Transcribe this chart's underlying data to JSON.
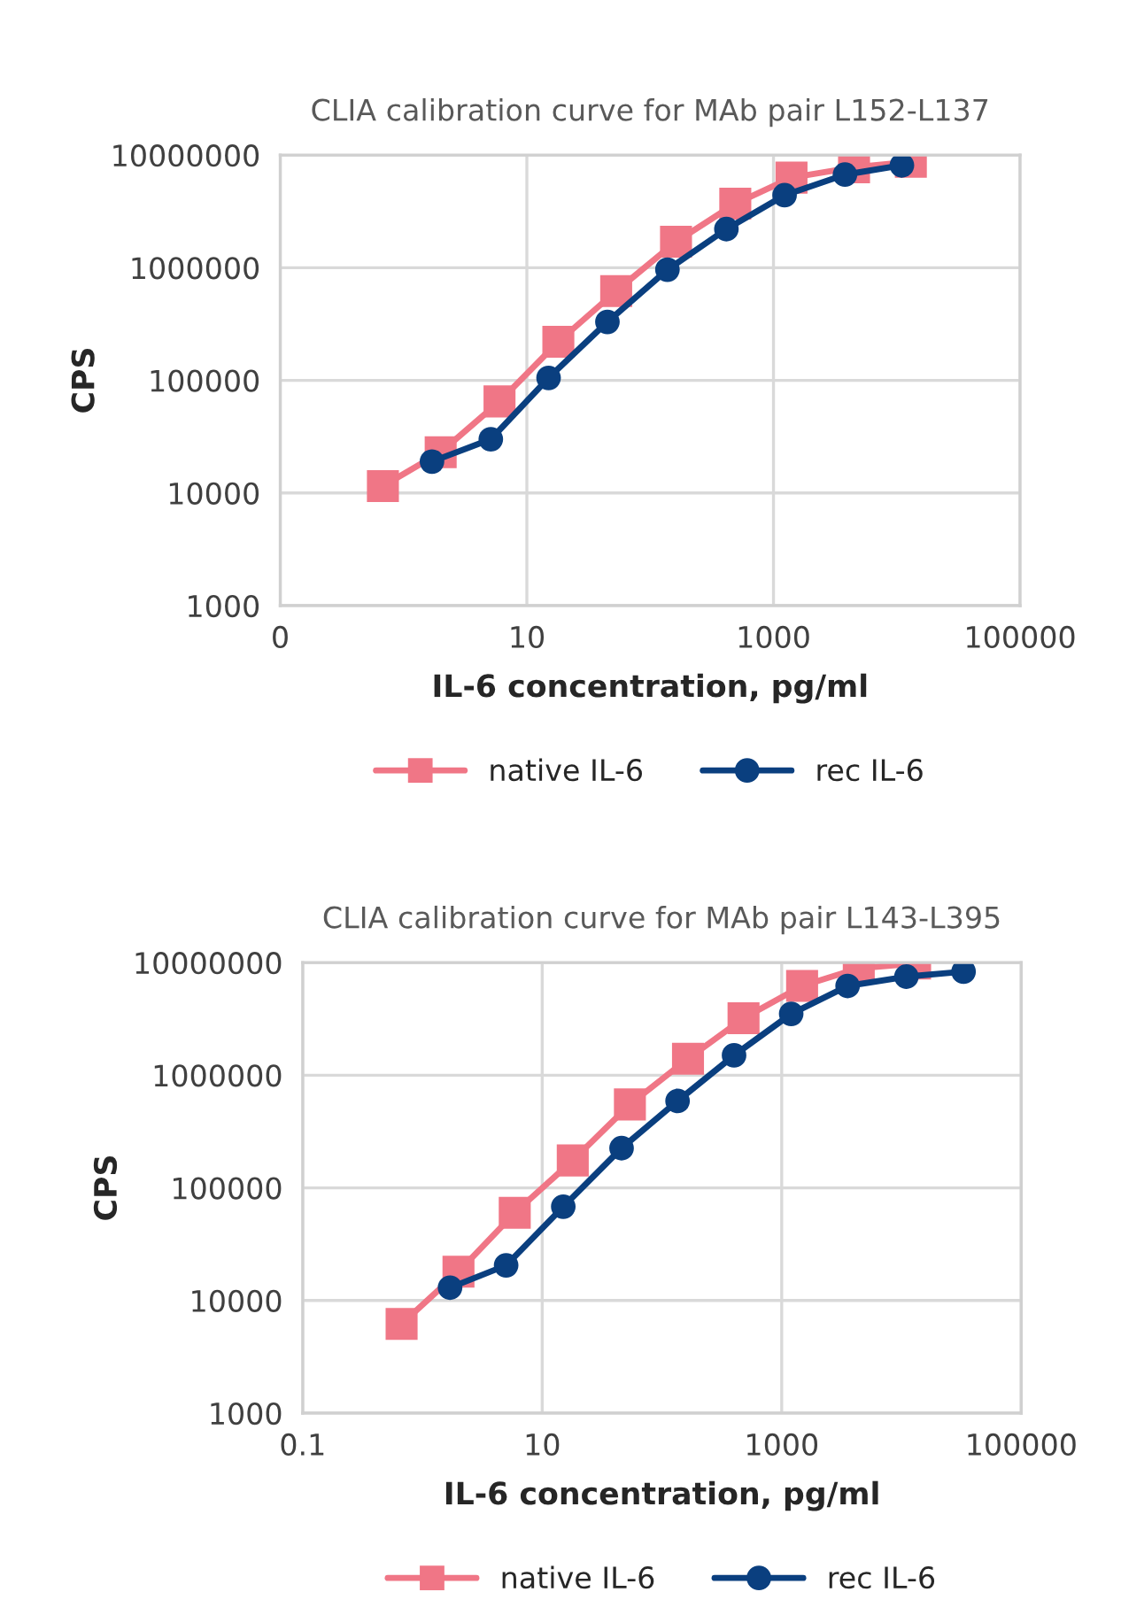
{
  "chart_data": [
    {
      "type": "line",
      "title": "CLIA calibration curve for MAb pair L152-L137",
      "xlabel": "IL-6 concentration, pg/ml",
      "ylabel": "CPS",
      "log": "xy",
      "xlim": [
        0.1,
        100000
      ],
      "xticks": [
        {
          "value": 0.1,
          "label": "0"
        },
        10,
        1000,
        100000
      ],
      "ylim": [
        1000,
        10000000
      ],
      "yticks": [
        1000,
        10000,
        100000,
        1000000,
        10000000
      ],
      "grid": true,
      "legend": "bottom",
      "series": [
        {
          "name": "native IL-6",
          "color": "#f07686",
          "marker": "square",
          "x": [
            0.68,
            2.0,
            6.0,
            18,
            53,
            162,
            490,
            1400,
            4500,
            13000
          ],
          "values": [
            11500,
            23000,
            65000,
            220000,
            620000,
            1700000,
            3700000,
            6300000,
            7800000,
            8700000
          ]
        },
        {
          "name": "rec IL-6",
          "color": "#0a3f7f",
          "marker": "circle",
          "x": [
            1.7,
            5.1,
            15,
            45,
            138,
            415,
            1230,
            3800,
            11000
          ],
          "values": [
            19000,
            30000,
            105000,
            330000,
            960000,
            2200000,
            4400000,
            6700000,
            8100000
          ]
        }
      ]
    },
    {
      "type": "line",
      "title": "CLIA calibration curve for MAb pair L143-L395",
      "xlabel": "IL-6 concentration, pg/ml",
      "ylabel": "CPS",
      "log": "xy",
      "xlim": [
        0.1,
        100000
      ],
      "xticks": [
        0.1,
        10,
        1000,
        100000
      ],
      "ylim": [
        1000,
        10000000
      ],
      "yticks": [
        1000,
        10000,
        100000,
        1000000,
        10000000
      ],
      "grid": true,
      "legend": "bottom",
      "series": [
        {
          "name": "native IL-6",
          "color": "#f07686",
          "marker": "square",
          "x": [
            0.67,
            2.0,
            5.9,
            18,
            54,
            165,
            480,
            1480,
            4400,
            13000
          ],
          "values": [
            6200,
            18000,
            60000,
            175000,
            550000,
            1400000,
            3200000,
            6200000,
            8900000,
            9800000
          ]
        },
        {
          "name": "rec IL-6",
          "color": "#0a3f7f",
          "marker": "circle",
          "x": [
            1.7,
            5.0,
            15,
            46,
            135,
            400,
            1200,
            3550,
            11000,
            33000
          ],
          "values": [
            13000,
            20500,
            68000,
            225000,
            590000,
            1500000,
            3500000,
            6200000,
            7500000,
            8300000
          ]
        }
      ]
    }
  ]
}
